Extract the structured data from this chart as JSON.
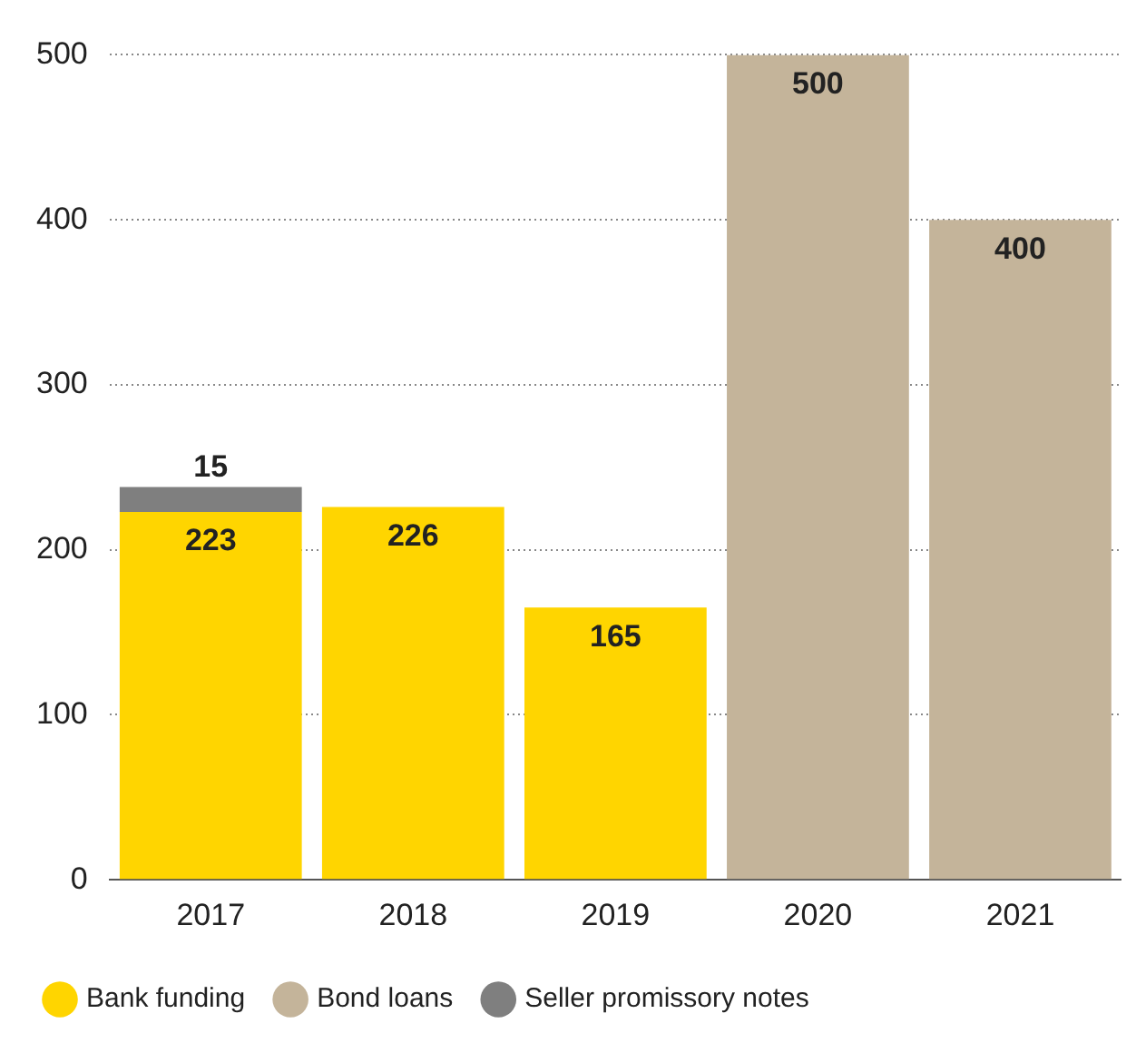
{
  "chart_data": {
    "type": "bar",
    "stacked": true,
    "categories": [
      "2017",
      "2018",
      "2019",
      "2020",
      "2021"
    ],
    "series": [
      {
        "name": "Bank funding",
        "color": "#ffd500",
        "values": [
          223,
          226,
          165,
          null,
          null
        ]
      },
      {
        "name": "Bond loans",
        "color": "#c4b49a",
        "values": [
          null,
          null,
          null,
          500,
          400
        ]
      },
      {
        "name": "Seller promissory notes",
        "color": "#7f7f7f",
        "values": [
          15,
          null,
          null,
          null,
          null
        ]
      }
    ],
    "ylim": [
      0,
      500
    ],
    "yticks": [
      0,
      100,
      200,
      300,
      400,
      500
    ],
    "grid": "y",
    "legend": "bottom",
    "data_labels": true
  }
}
